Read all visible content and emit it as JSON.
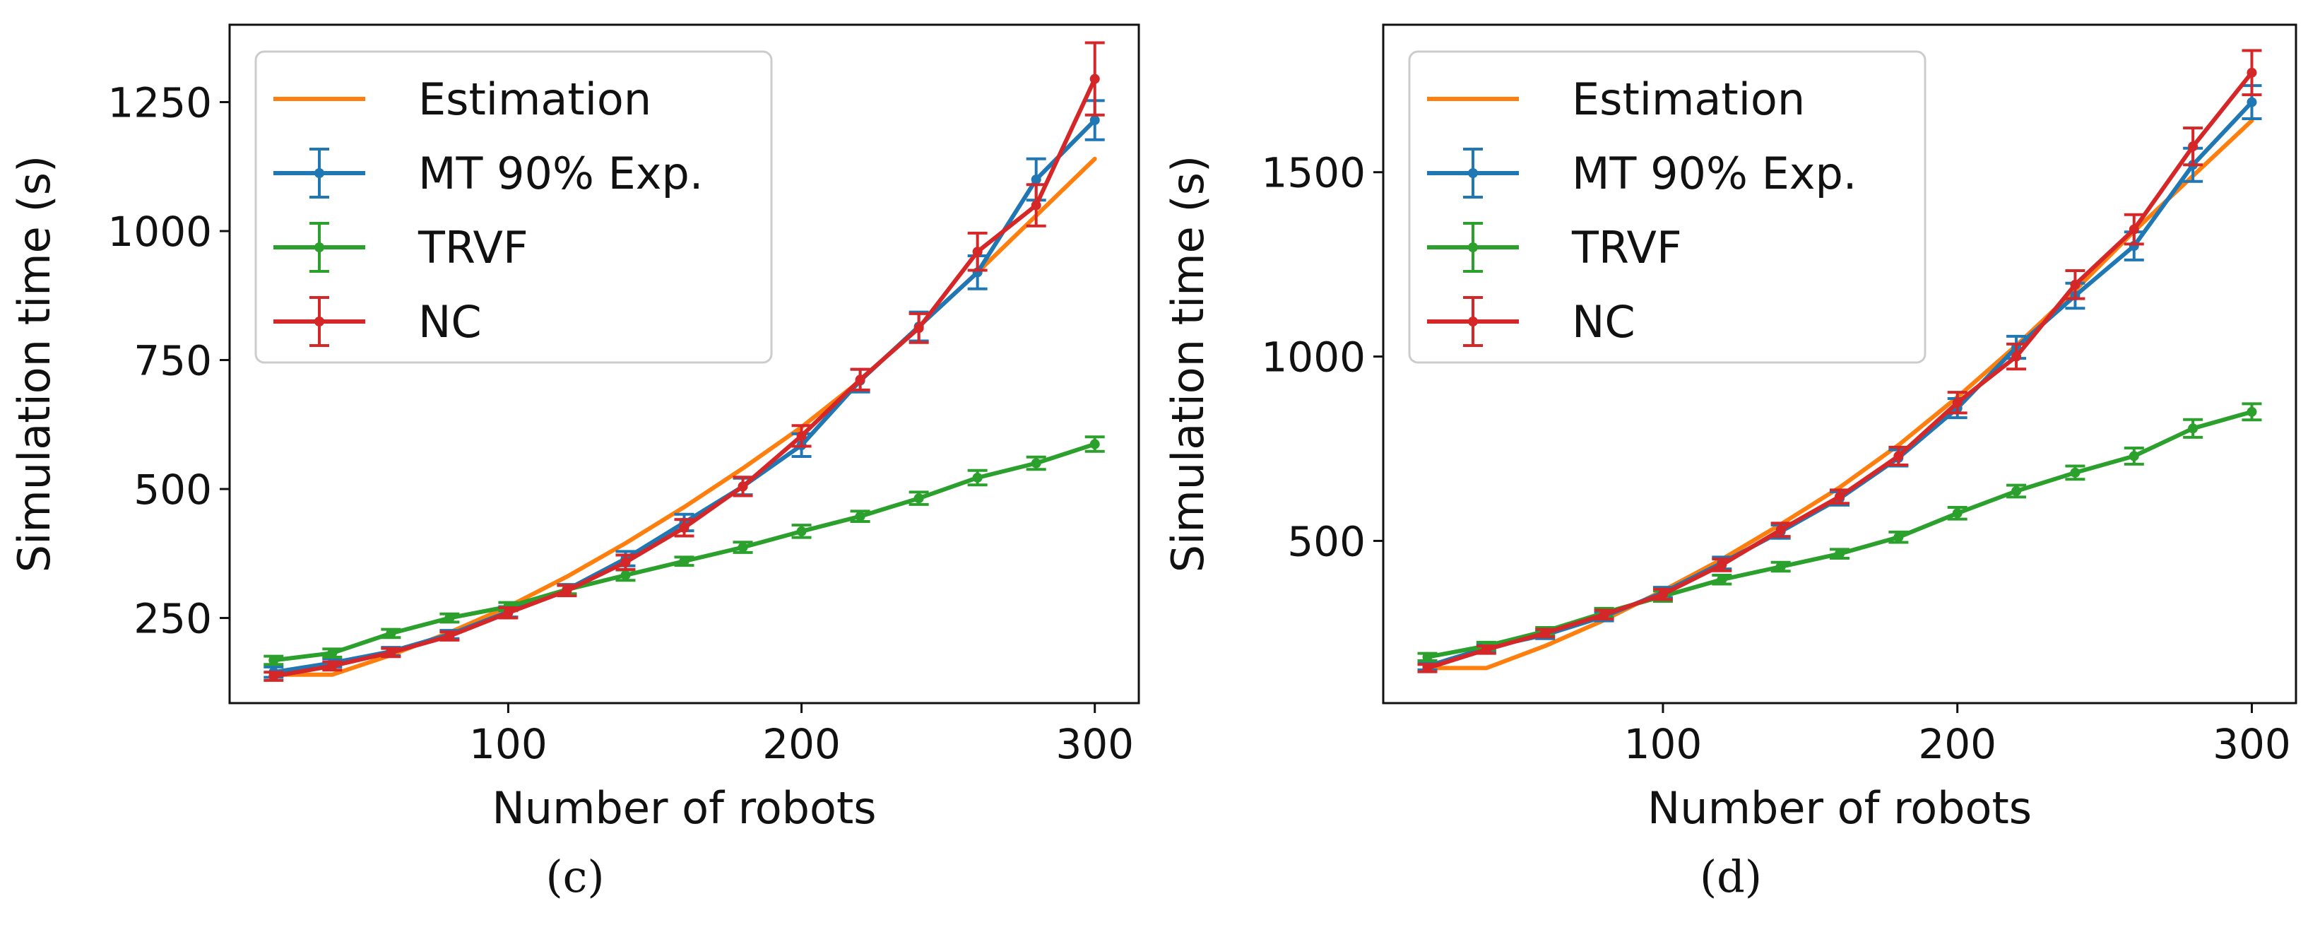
{
  "chart_data": [
    {
      "type": "line",
      "panel_label": "(c)",
      "xlabel": "Number of robots",
      "ylabel": "Simulation time (s)",
      "xlim": [
        5,
        315
      ],
      "ylim": [
        85,
        1400
      ],
      "xticks": [
        100,
        200,
        300
      ],
      "yticks": [
        250,
        500,
        750,
        1000,
        1250
      ],
      "grid": false,
      "legend_position": "top-left",
      "series": [
        {
          "name": "Estimation",
          "color": "#ff7f0e",
          "error_bars": false,
          "x": [
            20,
            40,
            60,
            80,
            100,
            120,
            140,
            160,
            180,
            200,
            220,
            240,
            260,
            280,
            300
          ],
          "y": [
            140,
            140,
            178,
            222,
            272,
            330,
            395,
            465,
            540,
            620,
            710,
            815,
            920,
            1030,
            1140
          ]
        },
        {
          "name": "MT 90% Exp.",
          "color": "#1f77b4",
          "error_bars": true,
          "x": [
            20,
            40,
            60,
            80,
            100,
            120,
            140,
            160,
            180,
            200,
            220,
            240,
            260,
            280,
            300
          ],
          "y": [
            145,
            163,
            185,
            218,
            262,
            305,
            365,
            435,
            505,
            585,
            710,
            815,
            920,
            1100,
            1215
          ],
          "err": [
            10,
            8,
            8,
            8,
            10,
            10,
            14,
            16,
            16,
            22,
            22,
            28,
            32,
            40,
            38
          ]
        },
        {
          "name": "TRVF",
          "color": "#2ca02c",
          "error_bars": true,
          "x": [
            20,
            40,
            60,
            80,
            100,
            120,
            140,
            160,
            180,
            200,
            220,
            240,
            260,
            280,
            300
          ],
          "y": [
            168,
            182,
            220,
            250,
            272,
            305,
            333,
            360,
            387,
            418,
            447,
            482,
            522,
            550,
            587
          ],
          "err": [
            8,
            8,
            8,
            8,
            8,
            8,
            10,
            8,
            10,
            12,
            10,
            12,
            14,
            12,
            14
          ]
        },
        {
          "name": "NC",
          "color": "#d62728",
          "error_bars": true,
          "x": [
            20,
            40,
            60,
            80,
            100,
            120,
            140,
            160,
            180,
            200,
            220,
            240,
            260,
            280,
            300
          ],
          "y": [
            137,
            157,
            183,
            215,
            260,
            303,
            358,
            425,
            505,
            603,
            712,
            812,
            960,
            1050,
            1295
          ],
          "err": [
            8,
            8,
            8,
            8,
            10,
            10,
            14,
            16,
            18,
            20,
            20,
            28,
            36,
            40,
            70
          ]
        }
      ]
    },
    {
      "type": "line",
      "panel_label": "(d)",
      "xlabel": "Number of robots",
      "ylabel": "Simulation time (s)",
      "xlim": [
        5,
        315
      ],
      "ylim": [
        60,
        1900
      ],
      "xticks": [
        100,
        200,
        300
      ],
      "yticks": [
        500,
        1000,
        1500
      ],
      "grid": false,
      "legend_position": "top-left",
      "series": [
        {
          "name": "Estimation",
          "color": "#ff7f0e",
          "error_bars": false,
          "x": [
            20,
            40,
            60,
            80,
            100,
            120,
            140,
            160,
            180,
            200,
            220,
            240,
            260,
            280,
            300
          ],
          "y": [
            155,
            155,
            215,
            285,
            365,
            450,
            545,
            645,
            760,
            890,
            1030,
            1180,
            1340,
            1490,
            1640
          ]
        },
        {
          "name": "MT 90% Exp.",
          "color": "#1f77b4",
          "error_bars": true,
          "x": [
            20,
            40,
            60,
            80,
            100,
            120,
            140,
            160,
            180,
            200,
            220,
            240,
            260,
            280,
            300
          ],
          "y": [
            160,
            210,
            245,
            295,
            360,
            440,
            525,
            615,
            725,
            860,
            1025,
            1165,
            1300,
            1520,
            1690
          ],
          "err": [
            10,
            10,
            10,
            12,
            14,
            16,
            18,
            18,
            22,
            26,
            30,
            34,
            38,
            45,
            45
          ]
        },
        {
          "name": "TRVF",
          "color": "#2ca02c",
          "error_bars": true,
          "x": [
            20,
            40,
            60,
            80,
            100,
            120,
            140,
            160,
            180,
            200,
            220,
            240,
            260,
            280,
            300
          ],
          "y": [
            185,
            215,
            255,
            305,
            350,
            395,
            430,
            465,
            510,
            575,
            635,
            685,
            730,
            805,
            850
          ],
          "err": [
            10,
            10,
            10,
            12,
            14,
            12,
            12,
            12,
            14,
            16,
            16,
            18,
            22,
            24,
            22
          ]
        },
        {
          "name": "NC",
          "color": "#d62728",
          "error_bars": true,
          "x": [
            20,
            40,
            60,
            80,
            100,
            120,
            140,
            160,
            180,
            200,
            220,
            240,
            260,
            280,
            300
          ],
          "y": [
            155,
            205,
            250,
            300,
            355,
            435,
            530,
            620,
            730,
            875,
            1000,
            1195,
            1345,
            1570,
            1770
          ],
          "err": [
            10,
            10,
            10,
            12,
            14,
            16,
            18,
            18,
            24,
            28,
            34,
            38,
            40,
            50,
            60
          ]
        }
      ]
    }
  ]
}
